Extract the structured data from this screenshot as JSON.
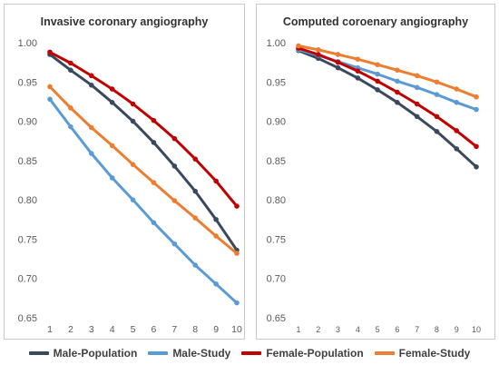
{
  "chart_data": [
    {
      "type": "line",
      "title": "Invasive coronary angiography",
      "x": [
        1,
        2,
        3,
        4,
        5,
        6,
        7,
        8,
        9,
        10
      ],
      "ylim": [
        0.65,
        1.0
      ],
      "yticks": [
        "0.65",
        "0.70",
        "0.75",
        "0.80",
        "0.85",
        "0.90",
        "0.95",
        "1.00"
      ],
      "xticks": [
        "1",
        "2",
        "3",
        "4",
        "5",
        "6",
        "7",
        "8",
        "9",
        "10"
      ],
      "grid": false,
      "series": [
        {
          "name": "Male-Population",
          "values": [
            0.985,
            0.965,
            0.946,
            0.924,
            0.9,
            0.873,
            0.843,
            0.811,
            0.775,
            0.736
          ]
        },
        {
          "name": "Male-Study",
          "values": [
            0.928,
            0.893,
            0.859,
            0.828,
            0.8,
            0.771,
            0.744,
            0.717,
            0.693,
            0.669
          ]
        },
        {
          "name": "Female-Population",
          "values": [
            0.988,
            0.974,
            0.958,
            0.941,
            0.922,
            0.901,
            0.878,
            0.852,
            0.824,
            0.792
          ]
        },
        {
          "name": "Female-Study",
          "values": [
            0.944,
            0.917,
            0.892,
            0.869,
            0.845,
            0.822,
            0.799,
            0.777,
            0.754,
            0.732
          ]
        }
      ]
    },
    {
      "type": "line",
      "title": "Computed coroenary angiography",
      "x": [
        1,
        2,
        3,
        4,
        5,
        6,
        7,
        8,
        9,
        10
      ],
      "ylim": [
        0.65,
        1.0
      ],
      "yticks": [
        "0.65",
        "0.70",
        "0.75",
        "0.80",
        "0.85",
        "0.90",
        "0.95",
        "1.00"
      ],
      "xticks": [
        "1",
        "2",
        "3",
        "4",
        "5",
        "6",
        "7",
        "8",
        "9",
        "10"
      ],
      "grid": false,
      "series": [
        {
          "name": "Male-Population",
          "values": [
            0.99,
            0.98,
            0.968,
            0.955,
            0.94,
            0.924,
            0.906,
            0.887,
            0.865,
            0.842
          ]
        },
        {
          "name": "Male-Study",
          "values": [
            0.991,
            0.984,
            0.976,
            0.968,
            0.96,
            0.951,
            0.943,
            0.934,
            0.924,
            0.915
          ]
        },
        {
          "name": "Female-Population",
          "values": [
            0.993,
            0.985,
            0.975,
            0.964,
            0.951,
            0.937,
            0.922,
            0.906,
            0.888,
            0.868
          ]
        },
        {
          "name": "Female-Study",
          "values": [
            0.996,
            0.991,
            0.985,
            0.979,
            0.972,
            0.965,
            0.958,
            0.95,
            0.941,
            0.931
          ]
        }
      ]
    }
  ],
  "legend": [
    {
      "label": "Male-Population",
      "color": "#3a4a5e"
    },
    {
      "label": "Male-Study",
      "color": "#5b9bd5"
    },
    {
      "label": "Female-Population",
      "color": "#c00000"
    },
    {
      "label": "Female-Study",
      "color": "#ed7d31"
    }
  ],
  "colors": {
    "male_population": "#3a4a5e",
    "male_study": "#5b9bd5",
    "female_population": "#c00000",
    "female_study": "#ed7d31"
  }
}
